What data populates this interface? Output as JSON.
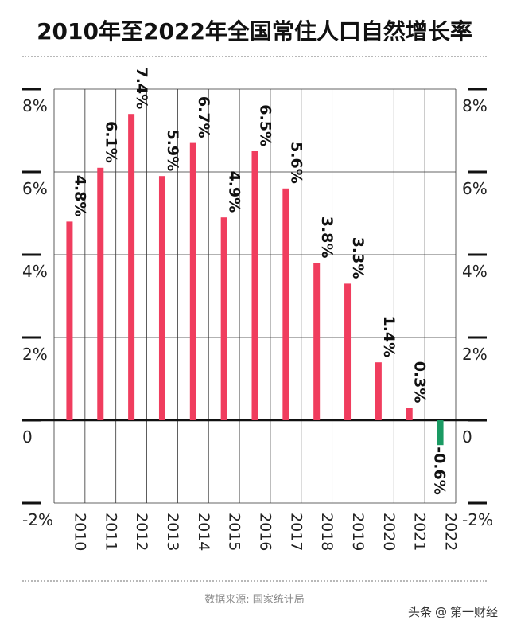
{
  "header": {
    "title": "2010年至2022年全国常住人口自然增长率"
  },
  "footer": {
    "source": "数据来源: 国家统计局",
    "watermark_prefix": "头条",
    "watermark_at": "@",
    "watermark_account": "第一财经"
  },
  "colors": {
    "positive": "#f03d5e",
    "negative": "#1a9a63",
    "axis": "#111111",
    "grid": "#333333"
  },
  "chart_data": {
    "type": "bar",
    "title": "2010年至2022年全国常住人口自然增长率",
    "categories": [
      "2010",
      "2011",
      "2012",
      "2013",
      "2014",
      "2015",
      "2016",
      "2017",
      "2018",
      "2019",
      "2020",
      "2021",
      "2022"
    ],
    "values": [
      4.8,
      6.1,
      7.4,
      5.9,
      6.7,
      4.9,
      6.5,
      5.6,
      3.8,
      3.3,
      1.4,
      0.3,
      -0.6
    ],
    "labels": [
      "4.8%",
      "6.1%",
      "7.4%",
      "5.9%",
      "6.7%",
      "4.9%",
      "6.5%",
      "5.6%",
      "3.8%",
      "3.3%",
      "1.4%",
      "0.3%",
      "-0.6%"
    ],
    "y_ticks": [
      8,
      6,
      4,
      2,
      0,
      -2
    ],
    "y_tick_labels": [
      "8%",
      "6%",
      "4%",
      "2%",
      "0",
      "-2%"
    ],
    "ylim": [
      -2,
      8
    ],
    "grid": true,
    "axes": "both sides"
  }
}
